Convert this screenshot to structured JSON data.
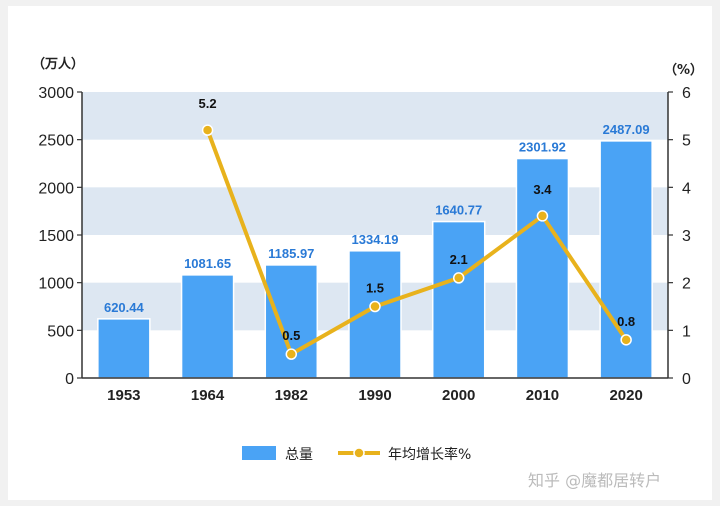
{
  "chart_data": {
    "type": "bar",
    "categories": [
      "1953",
      "1964",
      "1982",
      "1990",
      "2000",
      "2010",
      "2020"
    ],
    "series": [
      {
        "name": "总量",
        "type": "bar",
        "axis": "left",
        "values": [
          620.44,
          1081.65,
          1185.97,
          1334.19,
          1640.77,
          2301.92,
          2487.09
        ],
        "labels": [
          "620.44",
          "1081.65",
          "1185.97",
          "1334.19",
          "1640.77",
          "2301.92",
          "2487.09"
        ]
      },
      {
        "name": "年均增长率%",
        "type": "line",
        "axis": "right",
        "values": [
          null,
          5.2,
          0.5,
          1.5,
          2.1,
          3.4,
          0.8
        ],
        "labels": [
          "",
          "5.2",
          "0.5",
          "1.5",
          "2.1",
          "3.4",
          "0.8"
        ]
      }
    ],
    "y_left": {
      "unit": "（万人）",
      "ylim": [
        0,
        3000
      ],
      "ticks": [
        "0",
        "500",
        "1000",
        "1500",
        "2000",
        "2500",
        "3000"
      ]
    },
    "y_right": {
      "unit": "（%）",
      "ylim": [
        0,
        6
      ],
      "ticks": [
        "0",
        "1",
        "2",
        "3",
        "4",
        "5",
        "6"
      ]
    },
    "grid": "alternating horizontal bands",
    "legend": "bottom-center",
    "colors": {
      "bar": "#4aa3f5",
      "bar_label": "#2a7ad6",
      "line": "#e8b21c",
      "band": "#dde7f2"
    }
  },
  "watermark": "知乎 @魔都居转户"
}
